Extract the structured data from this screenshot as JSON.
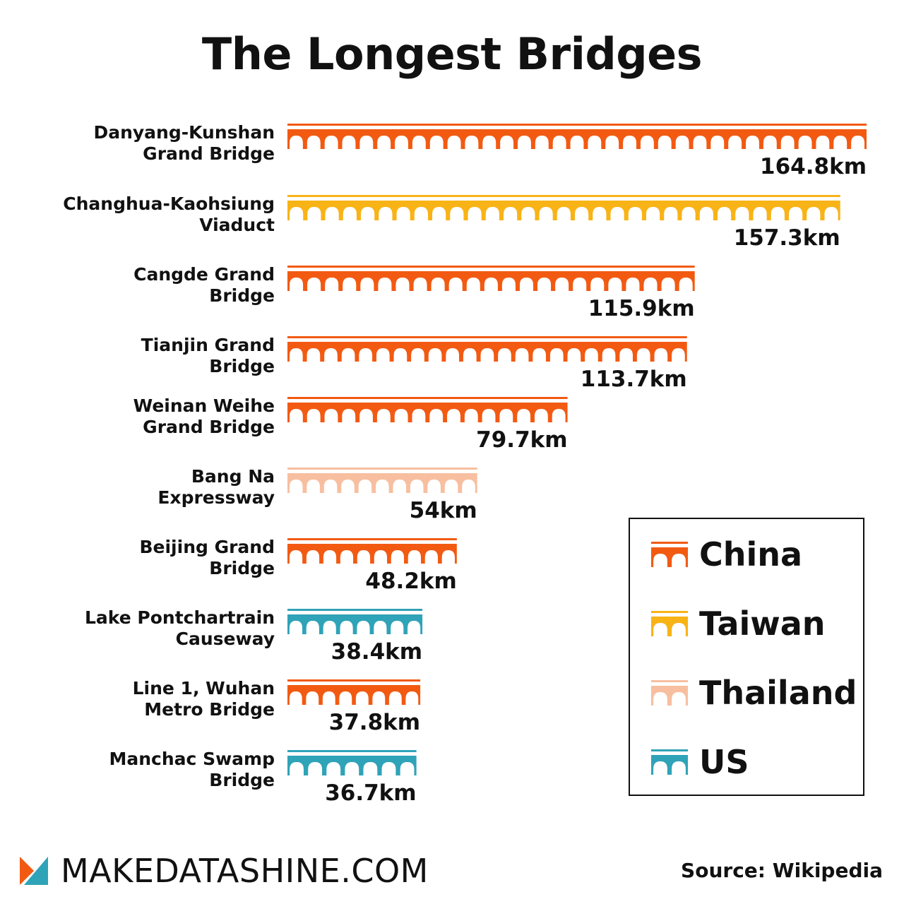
{
  "title": "The Longest Bridges",
  "colors": {
    "China": "#f25a12",
    "Taiwan": "#f8b316",
    "Thailand": "#f7bfa0",
    "US": "#2fa3b8"
  },
  "chart_data": {
    "type": "bar",
    "orientation": "horizontal",
    "unit": "km",
    "categories": [
      "Danyang-Kunshan Grand Bridge",
      "Changhua-Kaohsiung Viaduct",
      "Cangde Grand Bridge",
      "Tianjin Grand Bridge",
      "Weinan Weihe Grand Bridge",
      "Bang Na Expressway",
      "Beijing Grand Bridge",
      "Lake Pontchartrain Causeway",
      "Line 1, Wuhan Metro Bridge",
      "Manchac Swamp Bridge"
    ],
    "label_lines": [
      [
        "Danyang-Kunshan",
        "Grand Bridge"
      ],
      [
        "Changhua-Kaohsiung",
        "Viaduct"
      ],
      [
        "Cangde Grand",
        "Bridge"
      ],
      [
        "Tianjin Grand",
        "Bridge"
      ],
      [
        "Weinan Weihe",
        "Grand Bridge"
      ],
      [
        "Bang Na",
        "Expressway"
      ],
      [
        "Beijing Grand",
        "Bridge"
      ],
      [
        "Lake Pontchartrain",
        "Causeway"
      ],
      [
        "Line 1, Wuhan",
        "Metro Bridge"
      ],
      [
        "Manchac Swamp",
        "Bridge"
      ]
    ],
    "values": [
      164.8,
      157.3,
      115.9,
      113.7,
      79.7,
      54,
      48.2,
      38.4,
      37.8,
      36.7
    ],
    "value_labels": [
      "164.8km",
      "157.3km",
      "115.9km",
      "113.7km",
      "79.7km",
      "54km",
      "48.2km",
      "38.4km",
      "37.8km",
      "36.7km"
    ],
    "countries": [
      "China",
      "Taiwan",
      "China",
      "China",
      "China",
      "Thailand",
      "China",
      "US",
      "China",
      "US"
    ],
    "legend": [
      "China",
      "Taiwan",
      "Thailand",
      "US"
    ],
    "legend_position": "bottom-right",
    "grid": false
  },
  "footer": {
    "brand": "MAKEDATASHINE.COM",
    "source": "Source: Wikipedia"
  }
}
